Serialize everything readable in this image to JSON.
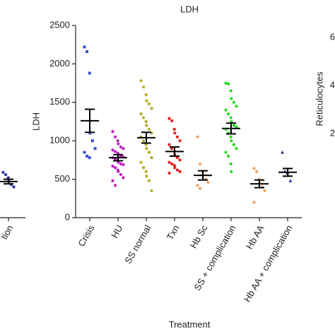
{
  "chart_data": [
    {
      "type": "dot",
      "title": "LDH",
      "ylabel": "LDH",
      "xlabel": "Treatment",
      "categories": [
        "Crisis",
        "HU",
        "SS normal",
        "Txn",
        "Hb Sc",
        "SS + complication",
        "Hb AA",
        "Hb AA + complication"
      ],
      "colors": [
        "#3a4fd6",
        "#c21fc2",
        "#b5ad1f",
        "#e0201f",
        "#f2a261",
        "#22dd22",
        "#f2a261",
        "#23309e"
      ],
      "markers": [
        "square",
        "circle",
        "circle",
        "circle",
        "circle",
        "circle",
        "circle",
        "triangle"
      ],
      "points": [
        [
          2220,
          2160,
          1880,
          1100,
          1000,
          900,
          850,
          800,
          780
        ],
        [
          1120,
          1050,
          1000,
          960,
          920,
          900,
          880,
          860,
          840,
          820,
          800,
          790,
          780,
          760,
          740,
          720,
          700,
          690,
          670,
          650,
          620,
          600,
          560,
          520,
          480,
          420
        ],
        [
          1780,
          1700,
          1600,
          1520,
          1480,
          1420,
          1350,
          1300,
          1250,
          1200,
          1150,
          1100,
          1050,
          1000,
          950,
          900,
          850,
          780,
          720,
          650,
          600,
          540,
          480,
          350
        ],
        [
          1290,
          1260,
          1150,
          1100,
          1050,
          1000,
          950,
          900,
          860,
          820,
          780,
          750,
          720,
          700,
          680,
          650,
          620,
          600,
          580
        ],
        [
          1050,
          700,
          600,
          550,
          500,
          460,
          420,
          380
        ],
        [
          1750,
          1740,
          1650,
          1550,
          1500,
          1450,
          1400,
          1350,
          1300,
          1250,
          1200,
          1180,
          1150,
          1100,
          1050,
          1000,
          950,
          900,
          850,
          800,
          700,
          600
        ],
        [
          640,
          600,
          500,
          450,
          400,
          350,
          200
        ],
        [
          850,
          600,
          580,
          550,
          480
        ]
      ],
      "means": [
        1260,
        780,
        1040,
        860,
        550,
        1160,
        440,
        590
      ],
      "errors": [
        150,
        40,
        70,
        60,
        60,
        70,
        50,
        50
      ],
      "ylim": [
        0,
        2500
      ],
      "yticks": [
        0,
        500,
        1000,
        1500,
        2000,
        2500
      ]
    },
    {
      "type": "fragment-left",
      "categories": [
        "tion"
      ],
      "colors": [
        "#23309e"
      ],
      "points": [
        [
          590,
          560,
          520,
          470,
          430,
          400
        ]
      ],
      "means": [
        470
      ],
      "errors": [
        30
      ],
      "ylim": [
        0,
        2500
      ]
    },
    {
      "type": "fragment-right",
      "ylabel": "Reticulocytes",
      "yticks": [
        6,
        4,
        2
      ],
      "ylim": [
        -1.5,
        6.5
      ]
    }
  ]
}
